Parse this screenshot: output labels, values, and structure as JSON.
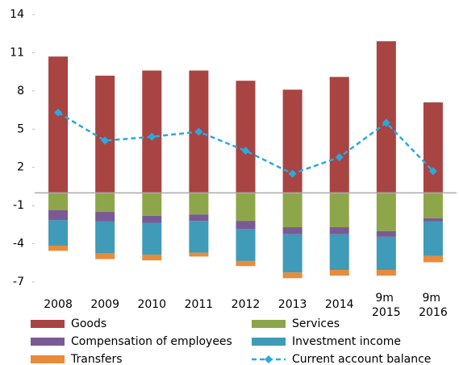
{
  "chart_data": {
    "type": "bar",
    "categories": [
      "2008",
      "2009",
      "2010",
      "2011",
      "2012",
      "2013",
      "2014",
      "9m 2015",
      "9m 2016"
    ],
    "series": [
      {
        "name": "Goods",
        "color": "#a84442",
        "values": [
          10.7,
          9.2,
          9.6,
          9.6,
          8.8,
          8.1,
          9.1,
          11.9,
          7.1
        ]
      },
      {
        "name": "Services",
        "color": "#8ea64a",
        "values": [
          -1.35,
          -1.5,
          -1.8,
          -1.7,
          -2.2,
          -2.7,
          -2.7,
          -3.0,
          -2.0
        ]
      },
      {
        "name": "Compensation of employees",
        "color": "#7a5a95",
        "values": [
          -0.8,
          -0.75,
          -0.55,
          -0.5,
          -0.65,
          -0.55,
          -0.55,
          -0.45,
          -0.25
        ]
      },
      {
        "name": "Investment income",
        "color": "#3f9bb7",
        "values": [
          -2.0,
          -2.5,
          -2.5,
          -2.5,
          -2.5,
          -3.0,
          -2.8,
          -2.6,
          -2.7
        ]
      },
      {
        "name": "Transfers",
        "color": "#e88b3a",
        "values": [
          -0.4,
          -0.45,
          -0.45,
          -0.3,
          -0.4,
          -0.45,
          -0.45,
          -0.45,
          -0.5
        ]
      },
      {
        "name": "Current account balance",
        "color": "#2aa8e0",
        "type": "line",
        "values": [
          6.3,
          4.1,
          4.4,
          4.8,
          3.3,
          1.5,
          2.8,
          5.5,
          1.7
        ]
      }
    ],
    "ylim": [
      -7,
      14
    ],
    "yticks": [
      -7,
      -4,
      -1,
      2,
      5,
      8,
      11,
      14
    ],
    "grid": false
  }
}
